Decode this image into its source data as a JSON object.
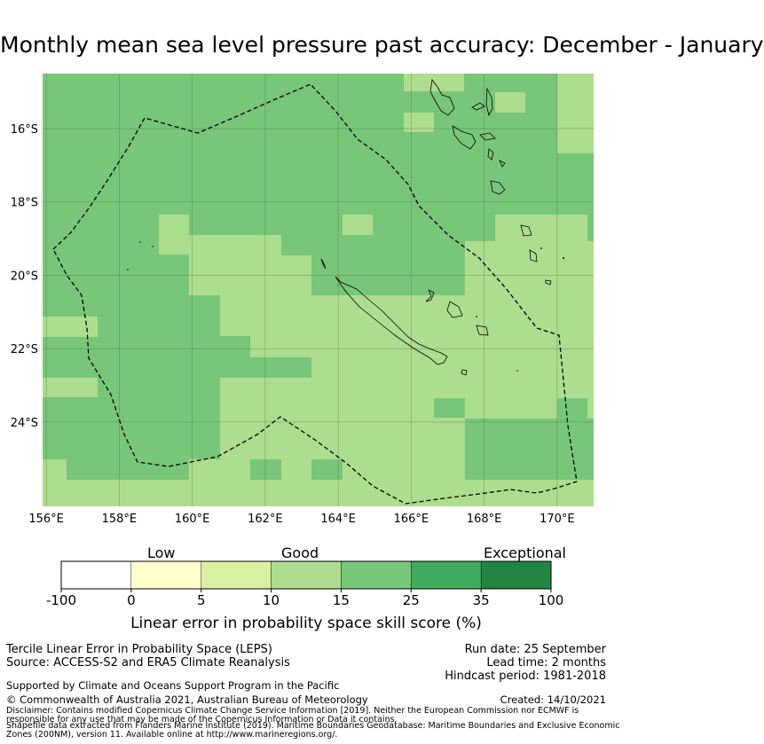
{
  "title": "Monthly mean sea level pressure past accuracy: December - January",
  "map": {
    "lat_labels": [
      "16°S",
      "18°S",
      "20°S",
      "22°S",
      "24°S"
    ],
    "lon_labels": [
      "156°E",
      "158°E",
      "160°E",
      "162°E",
      "164°E",
      "166°E",
      "168°E",
      "170°E"
    ],
    "lat_range": [
      -26.3,
      -14.5
    ],
    "lon_range": [
      155.9,
      171.0
    ],
    "region": "New Caledonia exclusive economic zone (dashed outline)"
  },
  "colorbar": {
    "category_labels": [
      "Low",
      "Good",
      "Exceptional"
    ],
    "tick_labels": [
      "-100",
      "0",
      "5",
      "10",
      "15",
      "25",
      "35",
      "100"
    ],
    "colors": [
      "#ffffff",
      "#ffffcc",
      "#d9f0a3",
      "#addd8e",
      "#78c679",
      "#41ab5d",
      "#238443"
    ],
    "xlabel": "Linear error in probability space skill score (%)"
  },
  "footer": {
    "line1": "Tercile Linear Error in Probability Space (LEPS)",
    "line2": "Source: ACCESS-S2 and ERA5 Climate Reanalysis",
    "run_date": "Run date: 25 September",
    "lead_time": "Lead time: 2 months",
    "hindcast": "Hindcast period: 1981-2018",
    "supported": "Supported by Climate and Oceans Support Program in the Pacific",
    "copyright": "© Commonwealth of Australia 2021, Australian Bureau of Meteorology",
    "created": "Created: 14/10/2021",
    "disclaimer1": "Disclaimer: Contains modified Copernicus Climate Change Service Information [2019]. Neither the European Commission nor ECMWF is",
    "disclaimer2": "responsible for any use that may be made of the Copernicus Information or Data it contains.",
    "shapefile1": "Shapefile data extracted from Flanders Marine Institute (2019). Maritime Boundaries Geodatabase: Maritime Boundaries and Exclusive Economic",
    "shapefile2": "Zones (200NM), version 11. Available online at http://www.marineregions.org/."
  }
}
